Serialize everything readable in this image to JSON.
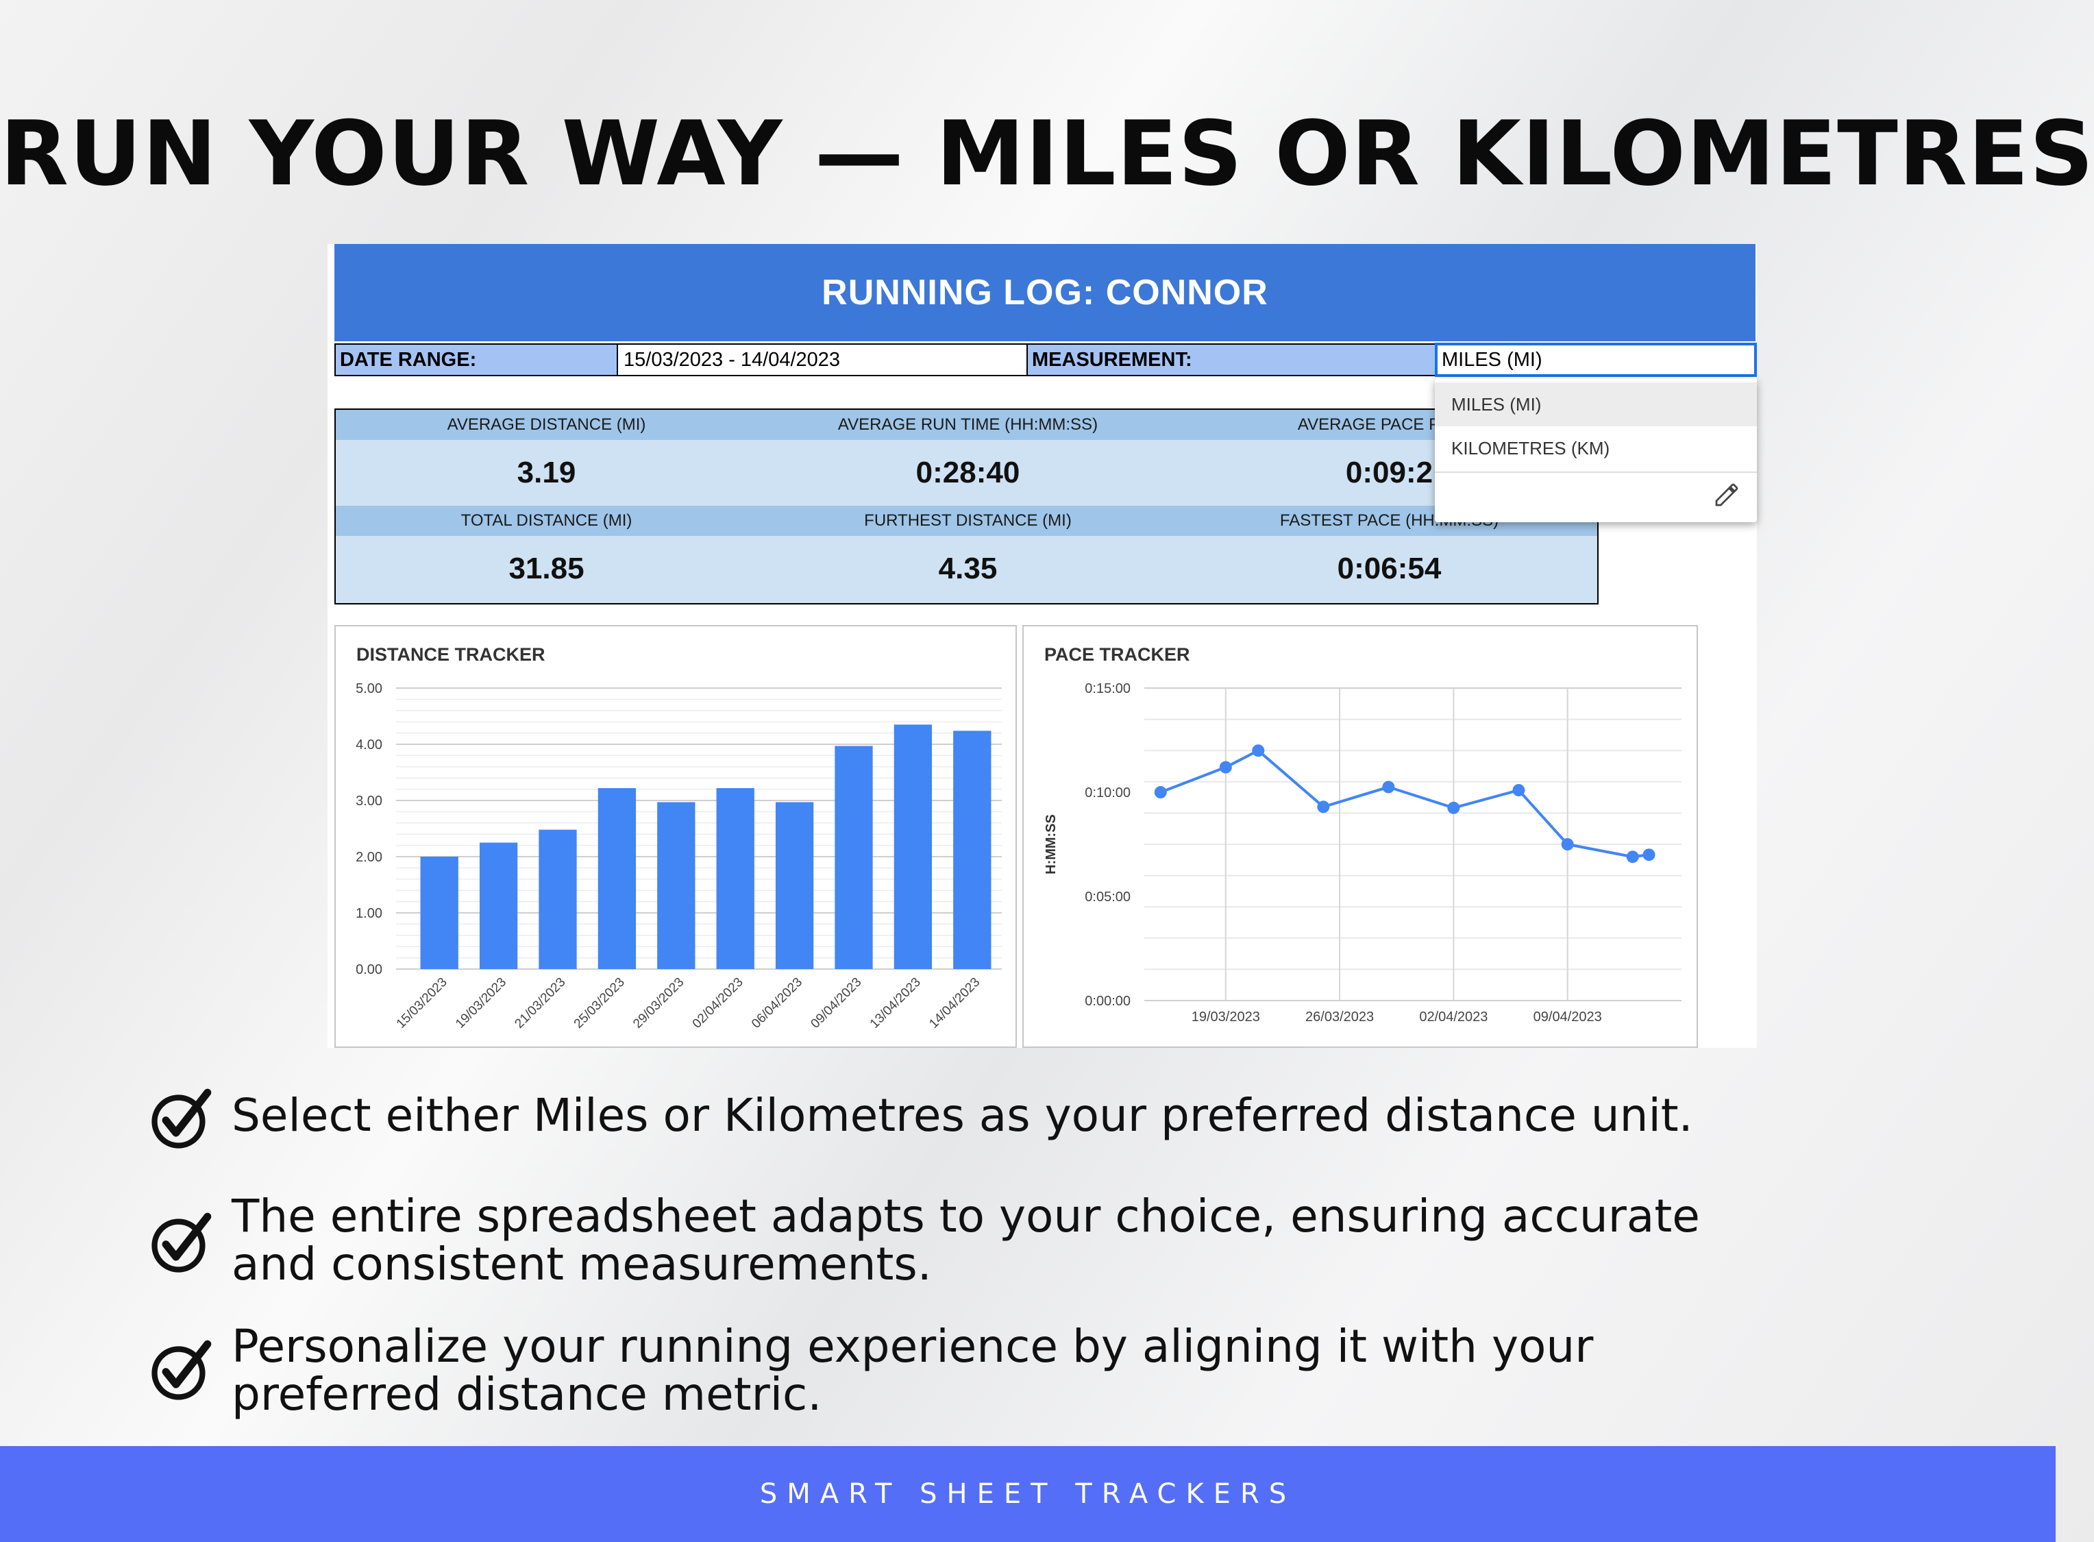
{
  "headline": "RUN YOUR WAY — MILES OR KILOMETRES",
  "sheet": {
    "title": "RUNNING LOG: CONNOR",
    "date_range_label": "DATE RANGE:",
    "date_range_value": "15/03/2023 - 14/04/2023",
    "measurement_label": "MEASUREMENT:",
    "measurement_value": "MILES (MI)",
    "dropdown_options": [
      "MILES (MI)",
      "KILOMETRES (KM)"
    ],
    "dropdown_selected": "MILES (MI)"
  },
  "stats": {
    "avg_distance_label": "AVERAGE DISTANCE (MI)",
    "avg_distance_value": "3.19",
    "avg_run_time_label": "AVERAGE RUN TIME (HH:MM:SS)",
    "avg_run_time_value": "0:28:40",
    "avg_pace_label": "AVERAGE PACE PER M",
    "avg_pace_value": "0:09:2",
    "total_distance_label": "TOTAL DISTANCE (MI)",
    "total_distance_value": "31.85",
    "furthest_distance_label": "FURTHEST DISTANCE (MI)",
    "furthest_distance_value": "4.35",
    "fastest_pace_label": "FASTEST PACE (HH:MM:SS)",
    "fastest_pace_value": "0:06:54"
  },
  "chart_data": [
    {
      "type": "bar",
      "title": "DISTANCE TRACKER",
      "categories": [
        "15/03/2023",
        "19/03/2023",
        "21/03/2023",
        "25/03/2023",
        "29/03/2023",
        "02/04/2023",
        "06/04/2023",
        "09/04/2023",
        "13/04/2023",
        "14/04/2023"
      ],
      "values": [
        2.0,
        2.25,
        2.48,
        3.22,
        2.97,
        3.22,
        2.97,
        3.97,
        4.35,
        4.24
      ],
      "yticks": [
        "0.00",
        "1.00",
        "2.00",
        "3.00",
        "4.00",
        "5.00"
      ],
      "ylim": [
        0,
        5
      ],
      "color": "#4285f4",
      "grid": true
    },
    {
      "type": "line",
      "title": "PACE TRACKER",
      "ylabel": "H:MM:SS",
      "x": [
        "15/03/2023",
        "19/03/2023",
        "21/03/2023",
        "25/03/2023",
        "29/03/2023",
        "02/04/2023",
        "06/04/2023",
        "09/04/2023",
        "13/04/2023",
        "14/04/2023"
      ],
      "y_minutes": [
        10.0,
        11.2,
        12.0,
        9.3,
        10.25,
        9.25,
        10.1,
        7.5,
        6.9,
        7.0
      ],
      "xticks": [
        "19/03/2023",
        "26/03/2023",
        "02/04/2023",
        "09/04/2023"
      ],
      "yticks": [
        "0:00:00",
        "0:05:00",
        "0:10:00",
        "0:15:00"
      ],
      "ylim_minutes": [
        0,
        15
      ],
      "color": "#4285f4",
      "grid": true
    }
  ],
  "bullets": [
    {
      "line1": "Select either Miles or Kilometres as your preferred distance unit.",
      "line2": ""
    },
    {
      "line1": "The entire spreadsheet adapts to your choice, ensuring accurate",
      "line2": "and consistent measurements."
    },
    {
      "line1": "Personalize your running experience by aligning it with your",
      "line2": "preferred distance metric."
    }
  ],
  "footer": "SMART SHEET TRACKERS"
}
